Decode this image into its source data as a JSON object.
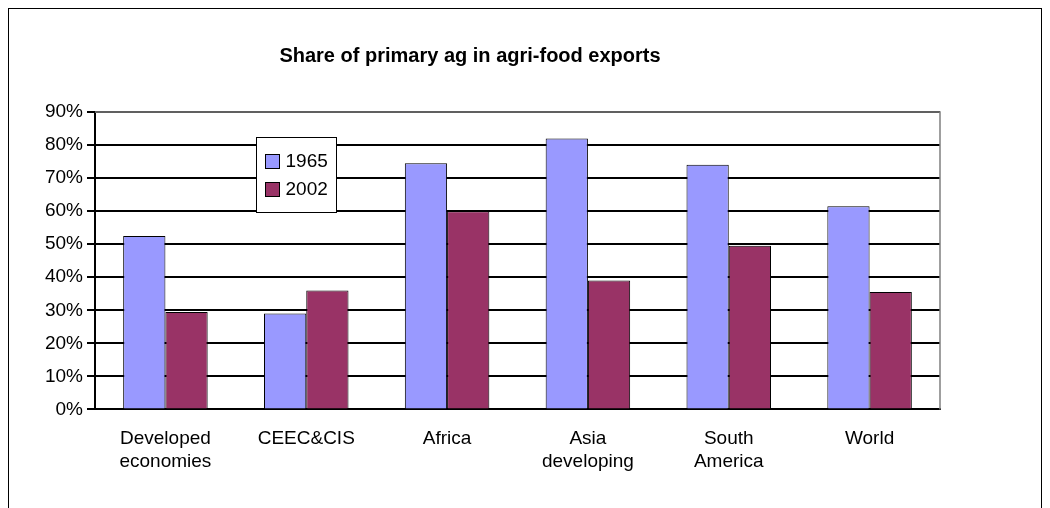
{
  "chart_data": {
    "type": "bar",
    "title": "Share of primary ag in agri-food exports",
    "categories": [
      "Developed economies",
      "CEEC&CIS",
      "Africa",
      "Asia developing",
      "South America",
      "World"
    ],
    "series": [
      {
        "name": "1965",
        "color": "#9999ff",
        "values": [
          52.5,
          29,
          74.5,
          82,
          74,
          61.5
        ]
      },
      {
        "name": "2002",
        "color": "#993366",
        "values": [
          29.5,
          36,
          60,
          39,
          49.5,
          35.5
        ]
      }
    ],
    "ylim": [
      0,
      90
    ],
    "yticks": [
      {
        "value": 0,
        "label": "0%"
      },
      {
        "value": 10,
        "label": "10%"
      },
      {
        "value": 20,
        "label": "20%"
      },
      {
        "value": 30,
        "label": "30%"
      },
      {
        "value": 40,
        "label": "40%"
      },
      {
        "value": 50,
        "label": "50%"
      },
      {
        "value": 60,
        "label": "60%"
      },
      {
        "value": 70,
        "label": "70%"
      },
      {
        "value": 80,
        "label": "80%"
      },
      {
        "value": 90,
        "label": "90%"
      }
    ],
    "grid": "y",
    "legend": "top left"
  }
}
